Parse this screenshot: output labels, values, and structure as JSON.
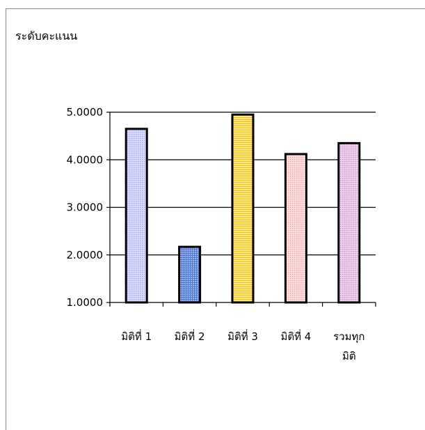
{
  "chart_data": {
    "type": "bar",
    "ylabel": "ระดับคะแนน",
    "xlabel": "",
    "title": "",
    "categories": [
      "มิติที่ 1",
      "มิติที่ 2",
      "มิติที่ 3",
      "มิติที่ 4",
      "รวมทุก มิติ"
    ],
    "category_lines": [
      [
        "มิติที่ 1"
      ],
      [
        "มิติที่ 2"
      ],
      [
        "มิติที่ 3"
      ],
      [
        "มิติที่ 4"
      ],
      [
        "รวมทุก",
        "มิติ"
      ]
    ],
    "values": [
      4.65,
      2.17,
      4.95,
      4.12,
      4.35
    ],
    "ylim": [
      1.0,
      5.0
    ],
    "yticks": [
      "1.0000",
      "2.0000",
      "3.0000",
      "4.0000",
      "5.0000"
    ],
    "ytick_values": [
      1,
      2,
      3,
      4,
      5
    ],
    "grid": true,
    "legend": "none",
    "bar_colors": [
      "#c8c8ff",
      "#7d9fe0",
      "#ffdb4d",
      "#ffc8c8",
      "#e8b0e8"
    ],
    "bar_patterns": [
      "dots",
      "grid",
      "hlines",
      "dots",
      "dots"
    ]
  }
}
